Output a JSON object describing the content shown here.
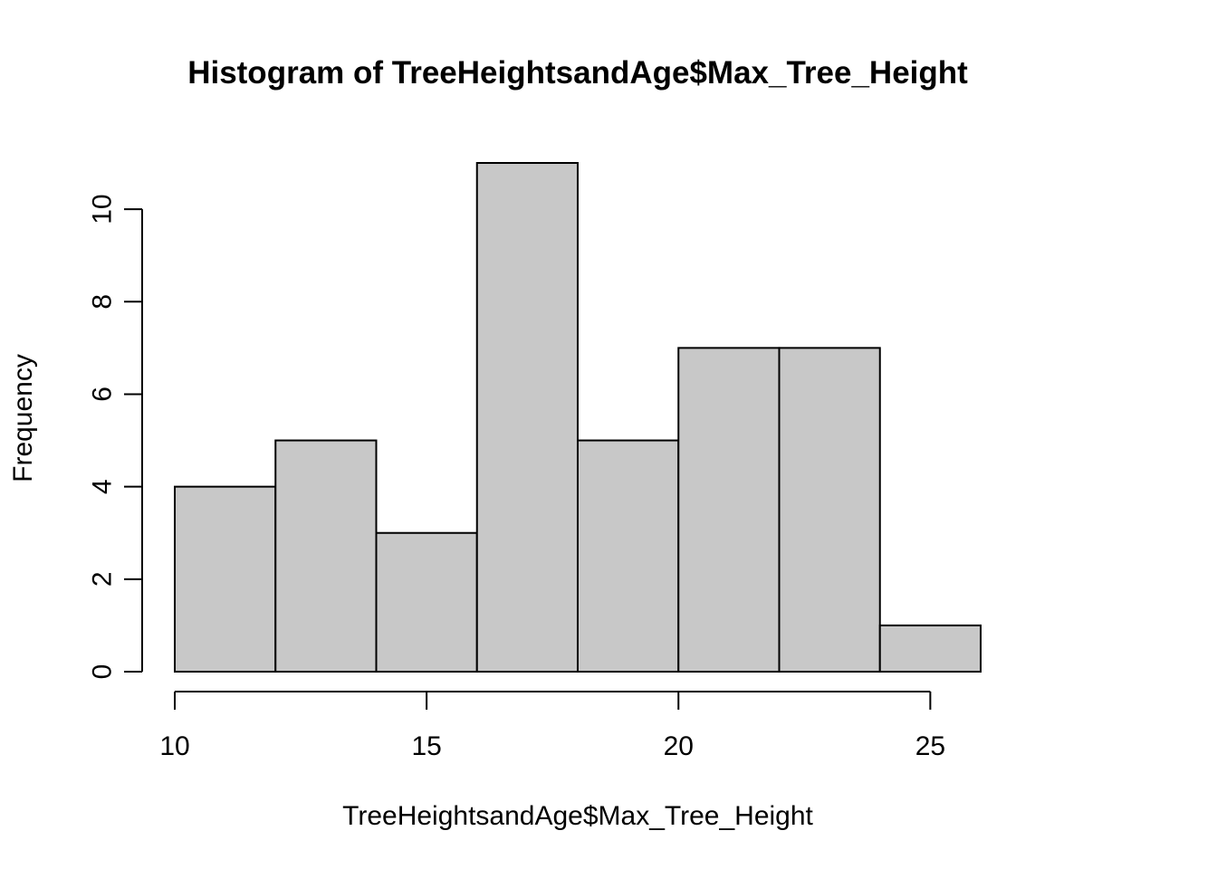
{
  "chart_data": {
    "type": "bar",
    "subtype": "histogram",
    "title": "Histogram of TreeHeightsandAge$Max_Tree_Height",
    "xlabel": "TreeHeightsandAge$Max_Tree_Height",
    "ylabel": "Frequency",
    "bins": [
      {
        "from": 10,
        "to": 12,
        "count": 4
      },
      {
        "from": 12,
        "to": 14,
        "count": 5
      },
      {
        "from": 14,
        "to": 16,
        "count": 3
      },
      {
        "from": 16,
        "to": 18,
        "count": 11
      },
      {
        "from": 18,
        "to": 20,
        "count": 5
      },
      {
        "from": 20,
        "to": 22,
        "count": 7
      },
      {
        "from": 22,
        "to": 24,
        "count": 7
      },
      {
        "from": 24,
        "to": 26,
        "count": 1
      }
    ],
    "x_ticks": [
      "10",
      "15",
      "20",
      "25"
    ],
    "y_ticks": [
      "0",
      "2",
      "4",
      "6",
      "8",
      "10"
    ],
    "xlim": [
      10,
      26
    ],
    "ylim": [
      0,
      11
    ],
    "grid": false,
    "bar_color": "#c8c8c8",
    "edge_color": "#000000"
  }
}
